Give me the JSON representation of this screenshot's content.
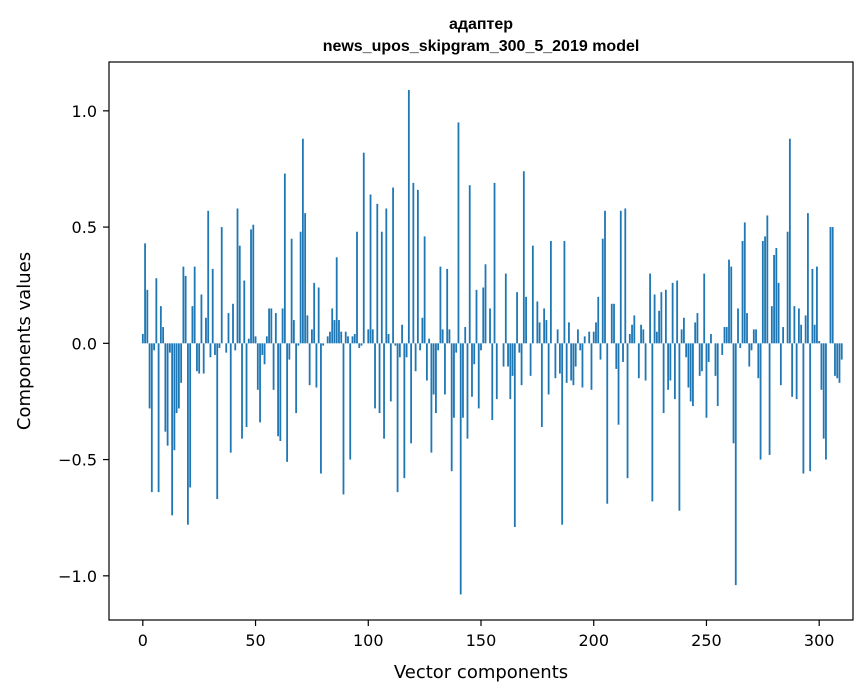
{
  "chart_data": {
    "type": "bar",
    "title": "адаптер",
    "subtitle": "news_upos_skipgram_300_5_2019 model",
    "xlabel": "Vector components",
    "ylabel": "Components values",
    "xlim": [
      -15,
      315
    ],
    "ylim": [
      -1.19,
      1.21
    ],
    "xticks": [
      0,
      50,
      100,
      150,
      200,
      250,
      300
    ],
    "xtick_labels": [
      "0",
      "50",
      "100",
      "150",
      "200",
      "250",
      "300"
    ],
    "yticks": [
      -1.0,
      -0.5,
      0.0,
      0.5,
      1.0
    ],
    "ytick_labels": [
      "−1.0",
      "−0.5",
      "0.0",
      "0.5",
      "1.0"
    ],
    "grid": false,
    "bar_color": "#1f77b4",
    "values": [
      0.04,
      0.43,
      0.23,
      -0.28,
      -0.64,
      -0.03,
      0.28,
      -0.64,
      0.16,
      0.07,
      -0.38,
      -0.44,
      -0.04,
      -0.74,
      -0.46,
      -0.3,
      -0.28,
      -0.17,
      0.33,
      0.29,
      -0.78,
      -0.62,
      0.16,
      0.33,
      -0.12,
      -0.13,
      0.21,
      -0.13,
      0.11,
      0.57,
      -0.06,
      0.32,
      -0.05,
      -0.67,
      -0.02,
      0.5,
      0.0,
      -0.04,
      0.13,
      -0.47,
      0.17,
      -0.03,
      0.58,
      0.42,
      -0.41,
      0.27,
      -0.36,
      0.02,
      0.49,
      0.51,
      0.03,
      -0.2,
      -0.34,
      -0.05,
      -0.09,
      0.03,
      0.15,
      0.15,
      -0.2,
      0.13,
      -0.4,
      -0.42,
      0.15,
      0.73,
      -0.51,
      -0.07,
      0.45,
      0.1,
      -0.3,
      -0.01,
      0.48,
      0.88,
      0.56,
      0.12,
      -0.18,
      0.06,
      0.26,
      -0.19,
      0.24,
      -0.56,
      -0.01,
      0.0,
      0.03,
      0.05,
      0.15,
      0.1,
      0.37,
      0.1,
      0.05,
      -0.65,
      0.05,
      0.03,
      -0.5,
      0.03,
      0.04,
      0.48,
      -0.02,
      -0.01,
      0.82,
      0.0,
      0.06,
      0.64,
      0.06,
      -0.28,
      0.6,
      -0.3,
      0.48,
      -0.41,
      0.58,
      0.04,
      -0.25,
      0.67,
      -0.01,
      -0.64,
      -0.06,
      0.08,
      -0.58,
      -0.06,
      1.09,
      -0.43,
      0.69,
      -0.12,
      0.66,
      -0.03,
      0.11,
      0.46,
      -0.16,
      0.02,
      -0.47,
      -0.22,
      -0.3,
      -0.03,
      0.33,
      0.06,
      -0.22,
      0.32,
      0.06,
      -0.55,
      -0.32,
      -0.04,
      0.95,
      -1.08,
      -0.32,
      0.07,
      -0.41,
      0.68,
      -0.23,
      -0.09,
      0.23,
      -0.28,
      -0.03,
      0.24,
      0.34,
      0.0,
      0.15,
      -0.33,
      0.69,
      -0.24,
      0.0,
      0.0,
      -0.1,
      0.3,
      -0.1,
      -0.24,
      -0.14,
      -0.79,
      0.22,
      -0.04,
      -0.18,
      0.74,
      0.2,
      0.0,
      -0.14,
      0.42,
      0.0,
      0.18,
      0.09,
      -0.36,
      0.15,
      0.1,
      -0.22,
      0.44,
      0.0,
      -0.15,
      0.06,
      -0.13,
      -0.78,
      0.44,
      -0.17,
      0.09,
      -0.16,
      -0.18,
      -0.1,
      0.06,
      -0.03,
      -0.19,
      0.03,
      0.0,
      0.05,
      -0.2,
      0.05,
      0.09,
      0.2,
      -0.07,
      0.45,
      0.57,
      -0.69,
      0.0,
      0.17,
      0.17,
      -0.11,
      -0.35,
      0.57,
      -0.08,
      0.58,
      -0.58,
      0.04,
      0.08,
      0.12,
      0.0,
      -0.15,
      0.08,
      0.06,
      -0.16,
      0.0,
      0.3,
      -0.68,
      0.21,
      0.05,
      0.14,
      0.22,
      -0.3,
      0.23,
      -0.2,
      -0.16,
      0.26,
      -0.24,
      0.27,
      -0.72,
      0.06,
      0.11,
      -0.06,
      -0.19,
      -0.25,
      -0.27,
      0.09,
      0.13,
      -0.14,
      -0.12,
      0.3,
      -0.32,
      -0.08,
      0.04,
      0.0,
      -0.14,
      -0.27,
      0.0,
      -0.05,
      0.07,
      0.07,
      0.36,
      0.33,
      -0.43,
      -1.04,
      0.15,
      -0.02,
      0.44,
      0.52,
      0.13,
      -0.1,
      -0.03,
      0.06,
      0.06,
      -0.15,
      -0.5,
      0.44,
      0.46,
      0.55,
      -0.48,
      0.16,
      0.38,
      0.41,
      0.26,
      -0.18,
      0.07,
      0.0,
      0.48,
      0.88,
      -0.23,
      0.16,
      -0.24,
      0.15,
      0.08,
      -0.56,
      0.12,
      0.56,
      -0.55,
      0.32,
      0.08,
      0.33,
      0.01,
      -0.2,
      -0.41,
      -0.5,
      0.0,
      0.5,
      0.5,
      -0.14,
      -0.15,
      -0.17,
      -0.07
    ]
  }
}
